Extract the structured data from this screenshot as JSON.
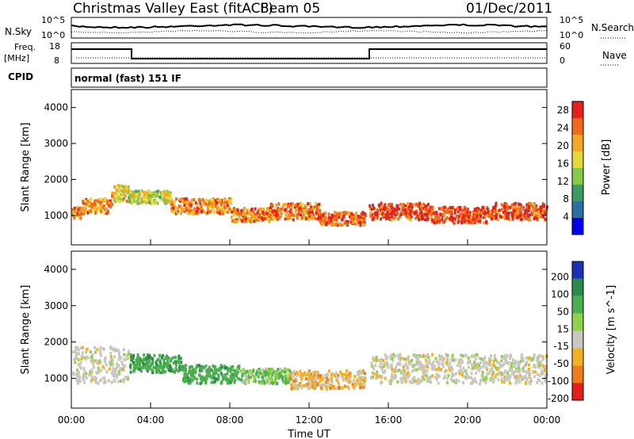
{
  "header": {
    "station": "Christmas Valley East (fitACF)",
    "beam": "Beam 05",
    "date": "01/Dec/2011"
  },
  "strip_panels": {
    "noise": {
      "left_label": "N.Sky",
      "left_ticks": [
        "10^5",
        "10^0"
      ],
      "right_ticks": [
        "10^5",
        "10^0"
      ],
      "right_label": "N.Search"
    },
    "frequency": {
      "left_label_1": "Freq.",
      "left_label_2": "[MHz]",
      "left_ticks": [
        "18",
        "8"
      ],
      "right_ticks": [
        "60",
        "0"
      ],
      "right_label": "Nave"
    },
    "cpid": {
      "label": "CPID",
      "text": "normal (fast) 151 IF"
    }
  },
  "colors": {
    "power_scale": [
      "#0000ee",
      "#2c6fa0",
      "#3d9a63",
      "#87c94a",
      "#e2d83a",
      "#f5a623",
      "#f06a1c",
      "#e4211c"
    ],
    "velocity_scale": [
      "#1b2fb7",
      "#2c8a4a",
      "#4caf4f",
      "#8fd14a",
      "#c8c8c0",
      "#f2b21f",
      "#f07c1a",
      "#e2201a"
    ],
    "ground_scatter": "#bdbdbd"
  },
  "chart_data": [
    {
      "type": "heatmap",
      "name": "power",
      "xlabel": "Time UT",
      "ylabel": "Slant Range [km]",
      "xlim": [
        0,
        24
      ],
      "ylim": [
        180,
        4500
      ],
      "x_ticks": [
        "00:00",
        "04:00",
        "08:00",
        "12:00",
        "16:00",
        "20:00",
        "00:00"
      ],
      "y_ticks": [
        1000,
        2000,
        3000,
        4000
      ],
      "colorbar": {
        "label": "Power [dB]",
        "ticks": [
          4,
          8,
          12,
          16,
          20,
          24,
          28
        ],
        "range": [
          0,
          30
        ]
      },
      "bands": [
        {
          "from_h": 0.0,
          "to_h": 0.5,
          "range_km": 1100,
          "width_km": 320,
          "db": 24
        },
        {
          "from_h": 0.5,
          "to_h": 2.0,
          "range_km": 1300,
          "width_km": 400,
          "db": 21
        },
        {
          "from_h": 2.0,
          "to_h": 2.9,
          "range_km": 1650,
          "width_km": 450,
          "db": 18
        },
        {
          "from_h": 2.9,
          "to_h": 5.0,
          "range_km": 1550,
          "width_km": 350,
          "db": 16
        },
        {
          "from_h": 5.0,
          "to_h": 8.0,
          "range_km": 1300,
          "width_km": 420,
          "db": 22
        },
        {
          "from_h": 8.0,
          "to_h": 10.0,
          "range_km": 1050,
          "width_km": 380,
          "db": 23
        },
        {
          "from_h": 10.0,
          "to_h": 12.5,
          "range_km": 1150,
          "width_km": 460,
          "db": 24
        },
        {
          "from_h": 12.5,
          "to_h": 14.8,
          "range_km": 950,
          "width_km": 360,
          "db": 25
        },
        {
          "from_h": 15.0,
          "to_h": 18.0,
          "range_km": 1150,
          "width_km": 460,
          "db": 27
        },
        {
          "from_h": 18.0,
          "to_h": 21.0,
          "range_km": 1050,
          "width_km": 440,
          "db": 27
        },
        {
          "from_h": 21.0,
          "to_h": 24.0,
          "range_km": 1150,
          "width_km": 460,
          "db": 26
        }
      ]
    },
    {
      "type": "heatmap",
      "name": "velocity",
      "xlabel": "Time UT",
      "ylabel": "Slant Range [km]",
      "xlim": [
        0,
        24
      ],
      "ylim": [
        180,
        4500
      ],
      "x_ticks": [
        "00:00",
        "04:00",
        "08:00",
        "12:00",
        "16:00",
        "20:00",
        "00:00"
      ],
      "y_ticks": [
        1000,
        2000,
        3000,
        4000
      ],
      "colorbar": {
        "label": "Velocity [m s^-1]",
        "ticks": [
          200,
          100,
          50,
          15,
          -15,
          -50,
          -100,
          -200
        ],
        "range": [
          -250,
          250
        ]
      },
      "bands": [
        {
          "from_h": 0.0,
          "to_h": 2.9,
          "range_km": 1400,
          "width_km": 1000,
          "ms": 0
        },
        {
          "from_h": 2.9,
          "to_h": 5.5,
          "range_km": 1450,
          "width_km": 500,
          "ms": 70
        },
        {
          "from_h": 5.5,
          "to_h": 8.5,
          "range_km": 1150,
          "width_km": 500,
          "ms": 60
        },
        {
          "from_h": 8.5,
          "to_h": 11.0,
          "range_km": 1100,
          "width_km": 400,
          "ms": 30
        },
        {
          "from_h": 11.0,
          "to_h": 14.8,
          "range_km": 1000,
          "width_km": 500,
          "ms": -20
        },
        {
          "from_h": 15.0,
          "to_h": 24.0,
          "range_km": 1300,
          "width_km": 800,
          "ms": 0
        }
      ]
    }
  ]
}
